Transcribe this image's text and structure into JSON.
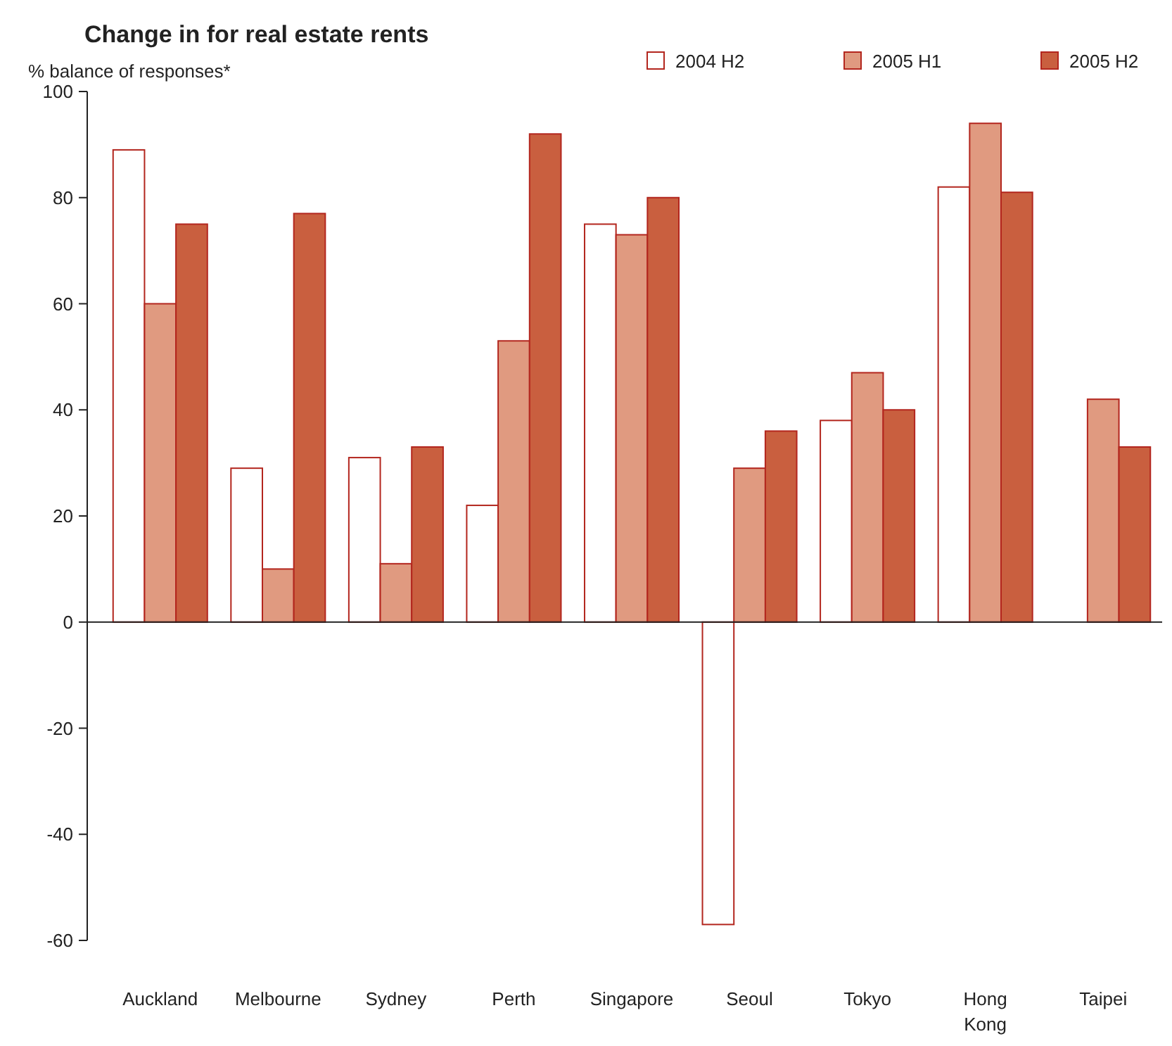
{
  "chart_data": {
    "type": "bar",
    "title": "Change in for real estate rents",
    "ylabel": "% balance of responses*",
    "categories": [
      "Auckland",
      "Melbourne",
      "Sydney",
      "Perth",
      "Singapore",
      "Seoul",
      "Tokyo",
      "Hong Kong",
      "Taipei"
    ],
    "series": [
      {
        "name": "2004 H2",
        "color": "#ffffff",
        "values": [
          89,
          29,
          31,
          22,
          75,
          -57,
          38,
          82,
          0
        ]
      },
      {
        "name": "2005 H1",
        "color": "#e09a80",
        "values": [
          60,
          10,
          11,
          53,
          73,
          29,
          47,
          94,
          42
        ]
      },
      {
        "name": "2005 H2",
        "color": "#c95f3f",
        "values": [
          75,
          77,
          33,
          92,
          80,
          36,
          40,
          81,
          33
        ]
      }
    ],
    "ylim": [
      -60,
      100
    ],
    "yticks": [
      -60,
      -40,
      -20,
      0,
      20,
      40,
      60,
      80,
      100
    ],
    "legend": "top right"
  }
}
